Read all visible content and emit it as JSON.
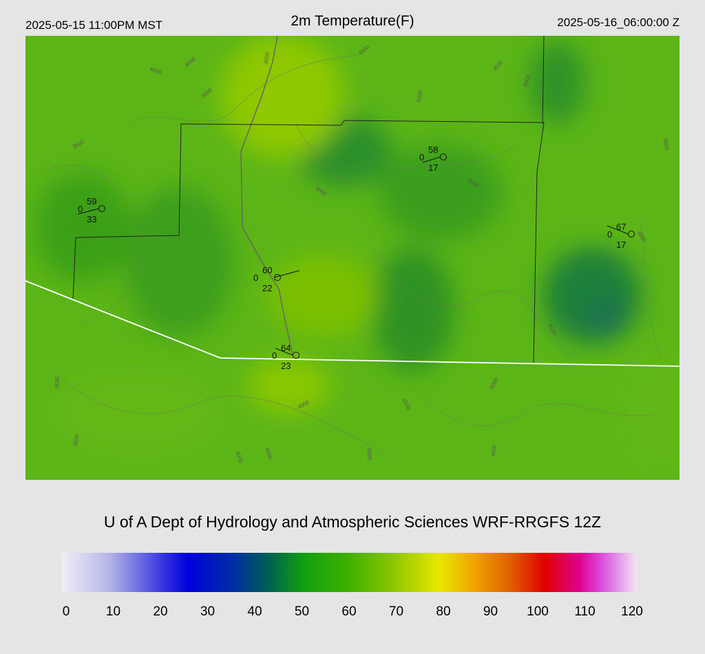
{
  "header": {
    "local_time": "2025-05-15 11:00PM MST",
    "title": "2m Temperature(F)",
    "valid_time": "2025-05-16_06:00:00 Z"
  },
  "stations": [
    {
      "temperature": 59,
      "dewpoint": 33,
      "left_code": 0
    },
    {
      "temperature": 58,
      "dewpoint": 17,
      "left_code": 0
    },
    {
      "temperature": 67,
      "dewpoint": 17,
      "left_code": 0
    },
    {
      "temperature": 60,
      "dewpoint": 22,
      "left_code": 0
    },
    {
      "temperature": 64,
      "dewpoint": 23,
      "left_code": 0
    }
  ],
  "contour_labels": [
    "4000",
    "4000",
    "3500",
    "3000",
    "4000",
    "4500",
    "5000",
    "3500",
    "4500",
    "5000",
    "4500",
    "3500",
    "4500",
    "3000",
    "4500",
    "4500",
    "5000",
    "4000",
    "4000",
    "5000",
    "4500",
    "5000",
    "4500"
  ],
  "footer": {
    "credit": "U of A Dept of Hydrology and Atmospheric Sciences WRF-RRGFS 12Z"
  },
  "colorbar": {
    "ticks": [
      0,
      10,
      20,
      30,
      40,
      50,
      60,
      70,
      80,
      90,
      100,
      110,
      120
    ]
  }
}
